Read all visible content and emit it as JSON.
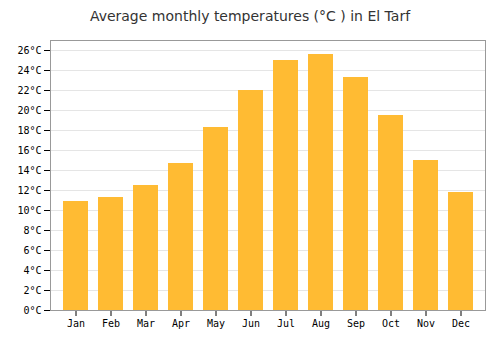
{
  "chart_data": {
    "type": "bar",
    "title": "Average monthly temperatures (°C ) in El Tarf",
    "categories": [
      "Jan",
      "Feb",
      "Mar",
      "Apr",
      "May",
      "Jun",
      "Jul",
      "Aug",
      "Sep",
      "Oct",
      "Nov",
      "Dec"
    ],
    "values": [
      10.9,
      11.3,
      12.5,
      14.7,
      18.3,
      22.0,
      25.0,
      25.6,
      23.3,
      19.5,
      15.0,
      11.8
    ],
    "color": "#FFBB33",
    "ylim": [
      0,
      27
    ],
    "yticks": [
      {
        "value": 0,
        "label": "0°C"
      },
      {
        "value": 2,
        "label": "2°C"
      },
      {
        "value": 4,
        "label": "4°C"
      },
      {
        "value": 6,
        "label": "6°C"
      },
      {
        "value": 8,
        "label": "8°C"
      },
      {
        "value": 10,
        "label": "10°C"
      },
      {
        "value": 12,
        "label": "12°C"
      },
      {
        "value": 14,
        "label": "14°C"
      },
      {
        "value": 16,
        "label": "16°C"
      },
      {
        "value": 18,
        "label": "18°C"
      },
      {
        "value": 20,
        "label": "20°C"
      },
      {
        "value": 22,
        "label": "22°C"
      },
      {
        "value": 24,
        "label": "24°C"
      },
      {
        "value": 26,
        "label": "26°C"
      }
    ],
    "grid": true
  }
}
